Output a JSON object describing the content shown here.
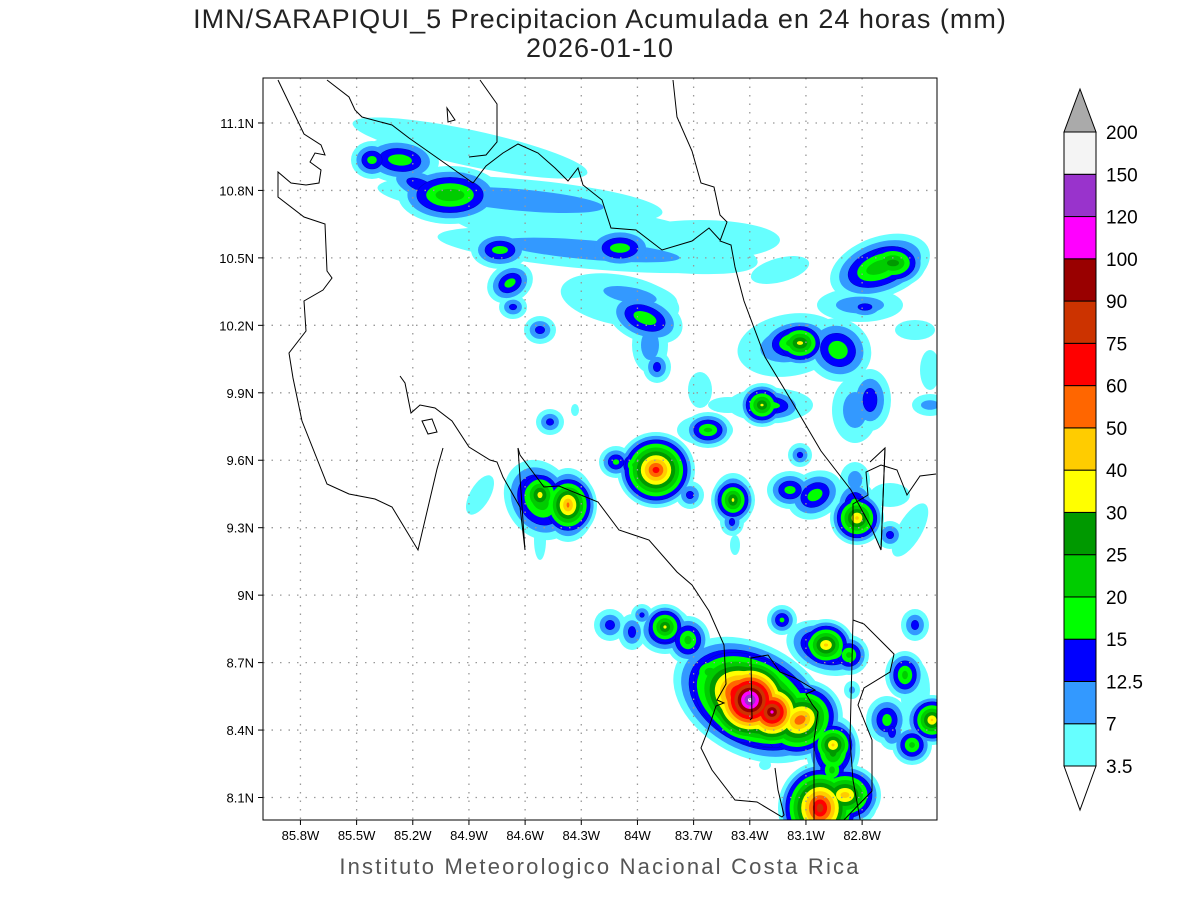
{
  "title": "IMN/SARAPIQUI_5 Precipitacion Acumulada en 24 horas (mm)",
  "date": "2026-01-10",
  "footer": "Instituto Meteorologico Nacional Costa Rica",
  "map": {
    "variable": "24-hour accumulated precipitation (mm)",
    "lon_range_w": [
      86.0,
      82.4
    ],
    "lat_range_n": [
      8.0,
      11.3
    ],
    "lat_ticks": [
      {
        "value": 11.1,
        "label": "11.1N"
      },
      {
        "value": 10.8,
        "label": "10.8N"
      },
      {
        "value": 10.5,
        "label": "10.5N"
      },
      {
        "value": 10.2,
        "label": "10.2N"
      },
      {
        "value": 9.9,
        "label": "9.9N"
      },
      {
        "value": 9.6,
        "label": "9.6N"
      },
      {
        "value": 9.3,
        "label": "9.3N"
      },
      {
        "value": 9.0,
        "label": "9N"
      },
      {
        "value": 8.7,
        "label": "8.7N"
      },
      {
        "value": 8.4,
        "label": "8.4N"
      },
      {
        "value": 8.1,
        "label": "8.1N"
      }
    ],
    "lon_ticks": [
      {
        "value": 85.8,
        "label": "85.8W"
      },
      {
        "value": 85.5,
        "label": "85.5W"
      },
      {
        "value": 85.2,
        "label": "85.2W"
      },
      {
        "value": 84.9,
        "label": "84.9W"
      },
      {
        "value": 84.6,
        "label": "84.6W"
      },
      {
        "value": 84.3,
        "label": "84.3W"
      },
      {
        "value": 84.0,
        "label": "84W"
      },
      {
        "value": 83.7,
        "label": "83.7W"
      },
      {
        "value": 83.4,
        "label": "83.4W"
      },
      {
        "value": 83.1,
        "label": "83.1W"
      },
      {
        "value": 82.8,
        "label": "82.8W"
      }
    ],
    "grid": true
  },
  "colorbar": {
    "labels": [
      "3.5",
      "7",
      "12.5",
      "15",
      "20",
      "25",
      "30",
      "40",
      "50",
      "60",
      "75",
      "90",
      "100",
      "120",
      "150",
      "200"
    ],
    "colors": [
      "#66ffff",
      "#3399ff",
      "#0000ff",
      "#00ff00",
      "#00cc00",
      "#009900",
      "#ffff00",
      "#ffcc00",
      "#ff6600",
      "#ff0000",
      "#cc3300",
      "#990000",
      "#ff00ff",
      "#9933cc",
      "#f4f4f4"
    ],
    "under_color": "#ffffff",
    "over_color": "#aaaaaa"
  }
}
